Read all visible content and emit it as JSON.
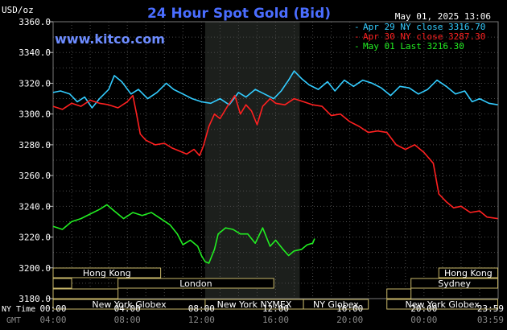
{
  "chart_data": {
    "type": "line",
    "title": "24 Hour Spot Gold (Bid)",
    "unit_label": "USD/oz",
    "site": "www.kitco.com",
    "datetime": "May 01, 2025 13:06",
    "ylim": [
      3180,
      3360
    ],
    "y_ticks": [
      "3360.0",
      "3340.0",
      "3320.0",
      "3300.0",
      "3280.0",
      "3260.0",
      "3240.0",
      "3220.0",
      "3200.0",
      "3180.0"
    ],
    "y_tick_values": [
      3360,
      3340,
      3320,
      3300,
      3280,
      3260,
      3240,
      3220,
      3200,
      3180
    ],
    "xlim": [
      0,
      24
    ],
    "x_ticks_ny": [
      "00:00",
      "04:00",
      "08:00",
      "12:00",
      "16:00",
      "20:00",
      "23:59"
    ],
    "x_ticks_gmt": [
      "04:00",
      "08:00",
      "12:00",
      "16:00",
      "20:00",
      "00:00",
      "03:59"
    ],
    "x_tick_hours": [
      0,
      4,
      8,
      12,
      16,
      20,
      23.983
    ],
    "x_axis_labels": {
      "ny": "NY Time",
      "gmt": "GMT"
    },
    "highlight_range": [
      8.2,
      13.3
    ],
    "grid": true,
    "legend": [
      {
        "label": "Apr 29 NY close 3316.70",
        "color": "#33ccff"
      },
      {
        "label": "Apr 30 NY close 3287.30",
        "color": "#ff2020"
      },
      {
        "label": "May 01 Last 3216.30",
        "color": "#22ee22"
      }
    ],
    "series": [
      {
        "name": "Apr 29",
        "color": "#33ccff",
        "points": [
          [
            0,
            3314
          ],
          [
            0.4,
            3315
          ],
          [
            0.9,
            3313
          ],
          [
            1.3,
            3308
          ],
          [
            1.7,
            3311
          ],
          [
            2.1,
            3304
          ],
          [
            2.5,
            3310
          ],
          [
            3.0,
            3316
          ],
          [
            3.3,
            3325
          ],
          [
            3.7,
            3321
          ],
          [
            4.2,
            3313
          ],
          [
            4.6,
            3316
          ],
          [
            5.1,
            3310
          ],
          [
            5.6,
            3314
          ],
          [
            6.1,
            3320
          ],
          [
            6.5,
            3316
          ],
          [
            7.0,
            3313
          ],
          [
            7.5,
            3310
          ],
          [
            8.0,
            3308
          ],
          [
            8.5,
            3307
          ],
          [
            9.0,
            3310
          ],
          [
            9.5,
            3306
          ],
          [
            10.0,
            3314
          ],
          [
            10.4,
            3311
          ],
          [
            10.9,
            3316
          ],
          [
            11.4,
            3313
          ],
          [
            11.9,
            3310
          ],
          [
            12.3,
            3315
          ],
          [
            12.7,
            3322
          ],
          [
            13.0,
            3328
          ],
          [
            13.4,
            3323
          ],
          [
            13.8,
            3319
          ],
          [
            14.3,
            3316
          ],
          [
            14.8,
            3321
          ],
          [
            15.2,
            3315
          ],
          [
            15.7,
            3322
          ],
          [
            16.2,
            3318
          ],
          [
            16.7,
            3322
          ],
          [
            17.2,
            3320
          ],
          [
            17.7,
            3317
          ],
          [
            18.2,
            3312
          ],
          [
            18.7,
            3318
          ],
          [
            19.2,
            3317
          ],
          [
            19.7,
            3313
          ],
          [
            20.2,
            3316
          ],
          [
            20.7,
            3322
          ],
          [
            21.2,
            3318
          ],
          [
            21.7,
            3313
          ],
          [
            22.2,
            3315
          ],
          [
            22.6,
            3308
          ],
          [
            23.0,
            3310
          ],
          [
            23.5,
            3307
          ],
          [
            23.98,
            3306
          ]
        ]
      },
      {
        "name": "Apr 30",
        "color": "#ff2020",
        "points": [
          [
            0,
            3305
          ],
          [
            0.5,
            3303
          ],
          [
            1.0,
            3307
          ],
          [
            1.5,
            3305
          ],
          [
            2.0,
            3309
          ],
          [
            2.5,
            3307
          ],
          [
            3.0,
            3306
          ],
          [
            3.5,
            3304
          ],
          [
            4.0,
            3308
          ],
          [
            4.3,
            3312
          ],
          [
            4.5,
            3300
          ],
          [
            4.7,
            3287
          ],
          [
            5.0,
            3283
          ],
          [
            5.5,
            3280
          ],
          [
            6.0,
            3281
          ],
          [
            6.4,
            3278
          ],
          [
            6.8,
            3276
          ],
          [
            7.2,
            3274
          ],
          [
            7.6,
            3277
          ],
          [
            7.9,
            3273
          ],
          [
            8.1,
            3279
          ],
          [
            8.4,
            3292
          ],
          [
            8.7,
            3300
          ],
          [
            9.0,
            3297
          ],
          [
            9.4,
            3305
          ],
          [
            9.8,
            3312
          ],
          [
            10.1,
            3300
          ],
          [
            10.4,
            3306
          ],
          [
            10.7,
            3302
          ],
          [
            11.0,
            3293
          ],
          [
            11.3,
            3305
          ],
          [
            11.7,
            3310
          ],
          [
            12.0,
            3307
          ],
          [
            12.5,
            3306
          ],
          [
            13.0,
            3310
          ],
          [
            13.5,
            3308
          ],
          [
            14.0,
            3306
          ],
          [
            14.5,
            3305
          ],
          [
            15.0,
            3299
          ],
          [
            15.5,
            3300
          ],
          [
            16.0,
            3295
          ],
          [
            16.5,
            3292
          ],
          [
            17.0,
            3288
          ],
          [
            17.5,
            3289
          ],
          [
            18.0,
            3288
          ],
          [
            18.5,
            3280
          ],
          [
            19.0,
            3277
          ],
          [
            19.5,
            3280
          ],
          [
            20.0,
            3275
          ],
          [
            20.5,
            3268
          ],
          [
            20.8,
            3248
          ],
          [
            21.2,
            3243
          ],
          [
            21.6,
            3239
          ],
          [
            22.0,
            3240
          ],
          [
            22.5,
            3236
          ],
          [
            23.0,
            3237
          ],
          [
            23.4,
            3233
          ],
          [
            23.98,
            3232
          ]
        ]
      },
      {
        "name": "May 01",
        "color": "#22ee22",
        "points": [
          [
            0,
            3227
          ],
          [
            0.5,
            3225
          ],
          [
            1.0,
            3230
          ],
          [
            1.5,
            3232
          ],
          [
            2.0,
            3235
          ],
          [
            2.5,
            3238
          ],
          [
            2.9,
            3241
          ],
          [
            3.3,
            3237
          ],
          [
            3.8,
            3232
          ],
          [
            4.3,
            3236
          ],
          [
            4.8,
            3234
          ],
          [
            5.3,
            3236
          ],
          [
            5.8,
            3232
          ],
          [
            6.3,
            3228
          ],
          [
            6.7,
            3222
          ],
          [
            7.0,
            3215
          ],
          [
            7.4,
            3218
          ],
          [
            7.8,
            3214
          ],
          [
            8.0,
            3208
          ],
          [
            8.2,
            3204
          ],
          [
            8.4,
            3203
          ],
          [
            8.7,
            3212
          ],
          [
            8.9,
            3222
          ],
          [
            9.3,
            3226
          ],
          [
            9.7,
            3225
          ],
          [
            10.1,
            3222
          ],
          [
            10.5,
            3222
          ],
          [
            10.9,
            3216
          ],
          [
            11.3,
            3226
          ],
          [
            11.7,
            3214
          ],
          [
            12.0,
            3218
          ],
          [
            12.4,
            3212
          ],
          [
            12.7,
            3208
          ],
          [
            13.0,
            3211
          ],
          [
            13.4,
            3212
          ],
          [
            13.7,
            3215
          ],
          [
            14.0,
            3216
          ],
          [
            14.1,
            3219
          ]
        ]
      }
    ],
    "sessions": [
      {
        "label": "Hong Kong",
        "start": 0,
        "end": 5.8,
        "row": 0
      },
      {
        "label": "Hong Kong",
        "start": 20.8,
        "end": 23.98,
        "row": 0
      },
      {
        "label": "London",
        "start": 3.5,
        "end": 11.9,
        "row": 1
      },
      {
        "label": "Sydney",
        "start": 19.3,
        "end": 23.98,
        "row": 1
      },
      {
        "label": "",
        "start": 0,
        "end": 1.0,
        "row": 1
      },
      {
        "label": "",
        "start": 0,
        "end": 3.5,
        "row": 2
      },
      {
        "label": "New York Globex",
        "start": 0,
        "end": 8.2,
        "row": 3
      },
      {
        "label": "New York NYMEX",
        "start": 8.2,
        "end": 13.5,
        "row": 3
      },
      {
        "label": "NY Globex",
        "start": 13.5,
        "end": 17.0,
        "row": 3
      },
      {
        "label": "New York Globex",
        "start": 18.0,
        "end": 23.98,
        "row": 3
      },
      {
        "label": "",
        "start": 18.0,
        "end": 19.3,
        "row": 2
      }
    ]
  }
}
